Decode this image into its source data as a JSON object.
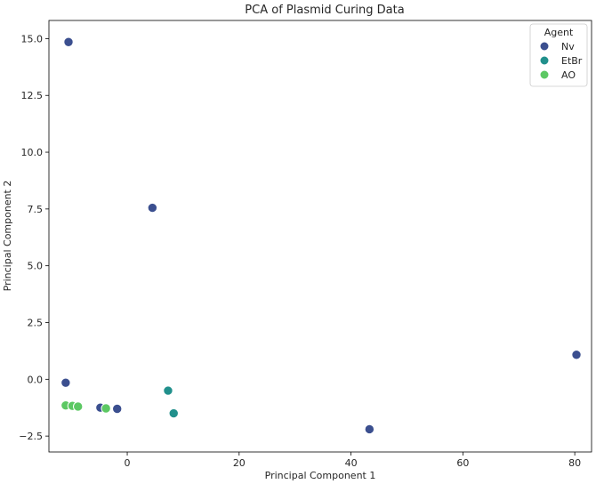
{
  "chart_data": {
    "type": "scatter",
    "title": "PCA of Plasmid Curing Data",
    "xlabel": "Principal Component 1",
    "ylabel": "Principal Component 2",
    "xlim": [
      -14,
      83
    ],
    "ylim": [
      -3.2,
      15.8
    ],
    "xticks": [
      0,
      20,
      40,
      60,
      80
    ],
    "yticks": [
      -2.5,
      0.0,
      2.5,
      5.0,
      7.5,
      10.0,
      12.5,
      15.0
    ],
    "ytick_labels": [
      "−2.5",
      "0.0",
      "2.5",
      "5.0",
      "7.5",
      "10.0",
      "12.5",
      "15.0"
    ],
    "xtick_labels": [
      "0",
      "20",
      "40",
      "60",
      "80"
    ],
    "grid": false,
    "legend_position": "top-right",
    "legend_title": "Agent",
    "series": [
      {
        "name": "Nv",
        "color": "#3b4f8f",
        "points": [
          [
            -10.5,
            14.85
          ],
          [
            4.5,
            7.55
          ],
          [
            -11.0,
            -0.15
          ],
          [
            -4.8,
            -1.25
          ],
          [
            -1.8,
            -1.3
          ],
          [
            43.3,
            -2.2
          ],
          [
            80.3,
            1.08
          ]
        ]
      },
      {
        "name": "EtBr",
        "color": "#21908c",
        "points": [
          [
            7.3,
            -0.5
          ],
          [
            8.3,
            -1.5
          ]
        ]
      },
      {
        "name": "AO",
        "color": "#5cc863",
        "points": [
          [
            -11.0,
            -1.15
          ],
          [
            -9.8,
            -1.17
          ],
          [
            -8.8,
            -1.2
          ],
          [
            -3.8,
            -1.28
          ]
        ]
      }
    ]
  }
}
